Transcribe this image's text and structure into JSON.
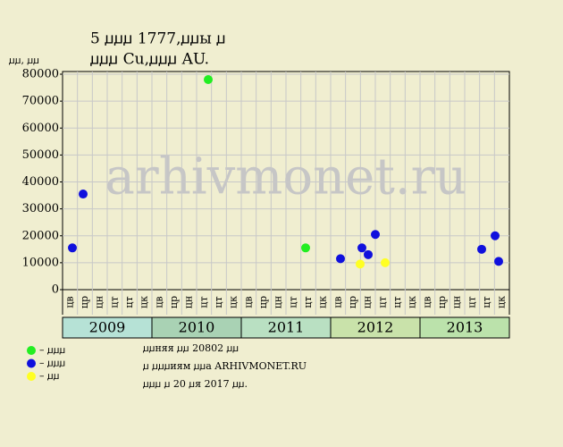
{
  "chart_data": {
    "type": "scatter",
    "title": [
      "5 ꙡꙡꙡ 1777,ꙡꙡы ꙡ",
      "ꙡꙡꙡ Cu,ꙡꙡꙡ AU."
    ],
    "ylabel": "ꙡꙡ, ꙡꙡ",
    "watermark": "arhivmonet.ru",
    "ylim": [
      0,
      80000
    ],
    "yticks": [
      0,
      10000,
      20000,
      30000,
      40000,
      50000,
      60000,
      70000,
      80000
    ],
    "xlim": [
      2009,
      2014
    ],
    "grid": true,
    "years": [
      {
        "label": "2009",
        "color": "#b6e2d6",
        "periods": [
          "цв",
          "цр",
          "цн",
          "цт",
          "цт",
          "цк"
        ]
      },
      {
        "label": "2010",
        "color": "#a9d2b4",
        "periods": [
          "цв",
          "цр",
          "цн",
          "цт",
          "цт",
          "цк"
        ]
      },
      {
        "label": "2011",
        "color": "#b9e0c2",
        "periods": [
          "цв",
          "цр",
          "цн",
          "цт",
          "цт",
          "цк"
        ]
      },
      {
        "label": "2012",
        "color": "#c9e2aa",
        "periods": [
          "цв",
          "цр",
          "цн",
          "цт",
          "цт",
          "цк"
        ]
      },
      {
        "label": "2013",
        "color": "#bbe2ab",
        "periods": [
          "цв",
          "цр",
          "цн",
          "цт",
          "цт",
          "цк"
        ]
      }
    ],
    "series": [
      {
        "name": "– ꙡꙡꙡ",
        "color": "#22ee22",
        "x": [
          2010.63,
          2011.72
        ],
        "values": [
          78000,
          15500
        ]
      },
      {
        "name": "– ꙡꙡꙡ",
        "color": "#1010dd",
        "x": [
          2009.11,
          2009.23,
          2012.11,
          2012.35,
          2012.42,
          2012.5,
          2013.69,
          2013.84,
          2013.88
        ],
        "values": [
          15500,
          35500,
          11500,
          15500,
          13000,
          20500,
          15000,
          20000,
          10500
        ]
      },
      {
        "name": "– ꙡꙡ",
        "color": "#ffff22",
        "x": [
          2012.33,
          2012.61
        ],
        "values": [
          9500,
          10000
        ]
      }
    ],
    "notes": [
      "ꙡꙡняя ꙡꙡ 20802 ꙡꙡ",
      "ꙡ ꙡꙡꙡиям ꙡꙡа ARHIVMONET.RU",
      "ꙡꙡꙡ ꙡ 20 ꙡя 2017 ꙡꙡ."
    ]
  }
}
